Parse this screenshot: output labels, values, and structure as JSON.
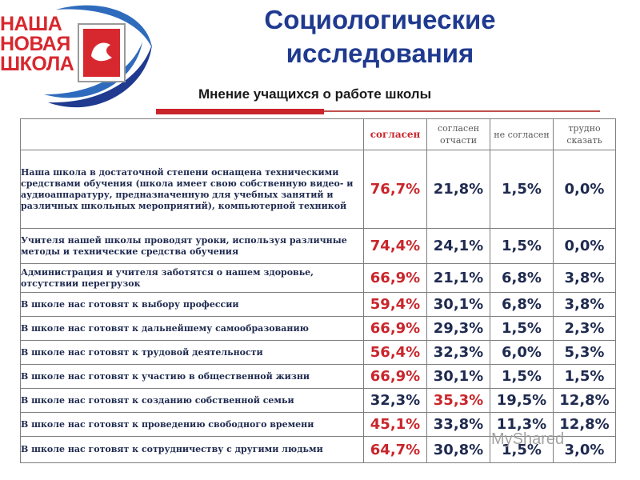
{
  "logo": {
    "line1": "НАША",
    "line2": "НОВАЯ",
    "line3": "ШКОЛА"
  },
  "title": "Социологические исследования",
  "subtitle": "Мнение учащихся о работе школы",
  "columns": [
    "согласен",
    "согласен отчасти",
    "не согласен",
    "трудно сказать"
  ],
  "rows": [
    {
      "question": "Наша школа в достаточной степени оснащена техническими средствами обучения (школа имеет свою собственную видео- и аудиоаппаратуру, предназначенную для учебных занятий и различных школьных мероприятий), компьютерной техникой",
      "values": [
        "76,7%",
        "21,8%",
        "1,5%",
        "0,0%"
      ],
      "highlight": 0
    },
    {
      "question": "Учителя нашей школы проводят уроки, используя различные методы и технические средства обучения",
      "values": [
        "74,4%",
        "24,1%",
        "1,5%",
        "0,0%"
      ],
      "highlight": 0
    },
    {
      "question": "Администрация и учителя заботятся о нашем здоровье, отсутствии перегрузок",
      "values": [
        "66,9%",
        "21,1%",
        "6,8%",
        "3,8%"
      ],
      "highlight": 0
    },
    {
      "question": "В школе нас готовят к выбору профессии",
      "values": [
        "59,4%",
        "30,1%",
        "6,8%",
        "3,8%"
      ],
      "highlight": 0
    },
    {
      "question": "В школе нас готовят к дальнейшему самообразованию",
      "values": [
        "66,9%",
        "29,3%",
        "1,5%",
        "2,3%"
      ],
      "highlight": 0
    },
    {
      "question": "В школе нас готовят к трудовой деятельности",
      "values": [
        "56,4%",
        "32,3%",
        "6,0%",
        "5,3%"
      ],
      "highlight": 0
    },
    {
      "question": "В школе нас готовят к участию в общественной жизни",
      "values": [
        "66,9%",
        "30,1%",
        "1,5%",
        "1,5%"
      ],
      "highlight": 0
    },
    {
      "question": "В школе нас готовят к созданию собственной семьи",
      "values": [
        "32,3%",
        "35,3%",
        "19,5%",
        "12,8%"
      ],
      "highlight": 1
    },
    {
      "question": "В школе нас готовят к проведению свободного времени",
      "values": [
        "45,1%",
        "33,8%",
        "11,3%",
        "12,8%"
      ],
      "highlight": 0
    },
    {
      "question": "В школе нас готовят к сотрудничеству с другими людьми",
      "values": [
        "64,7%",
        "30,8%",
        "1,5%",
        "3,0%"
      ],
      "highlight": 0
    }
  ],
  "watermark": "MyShared",
  "colors": {
    "title": "#1f3a8f",
    "highlight": "#c9252b",
    "values": "#1f2a4f"
  }
}
